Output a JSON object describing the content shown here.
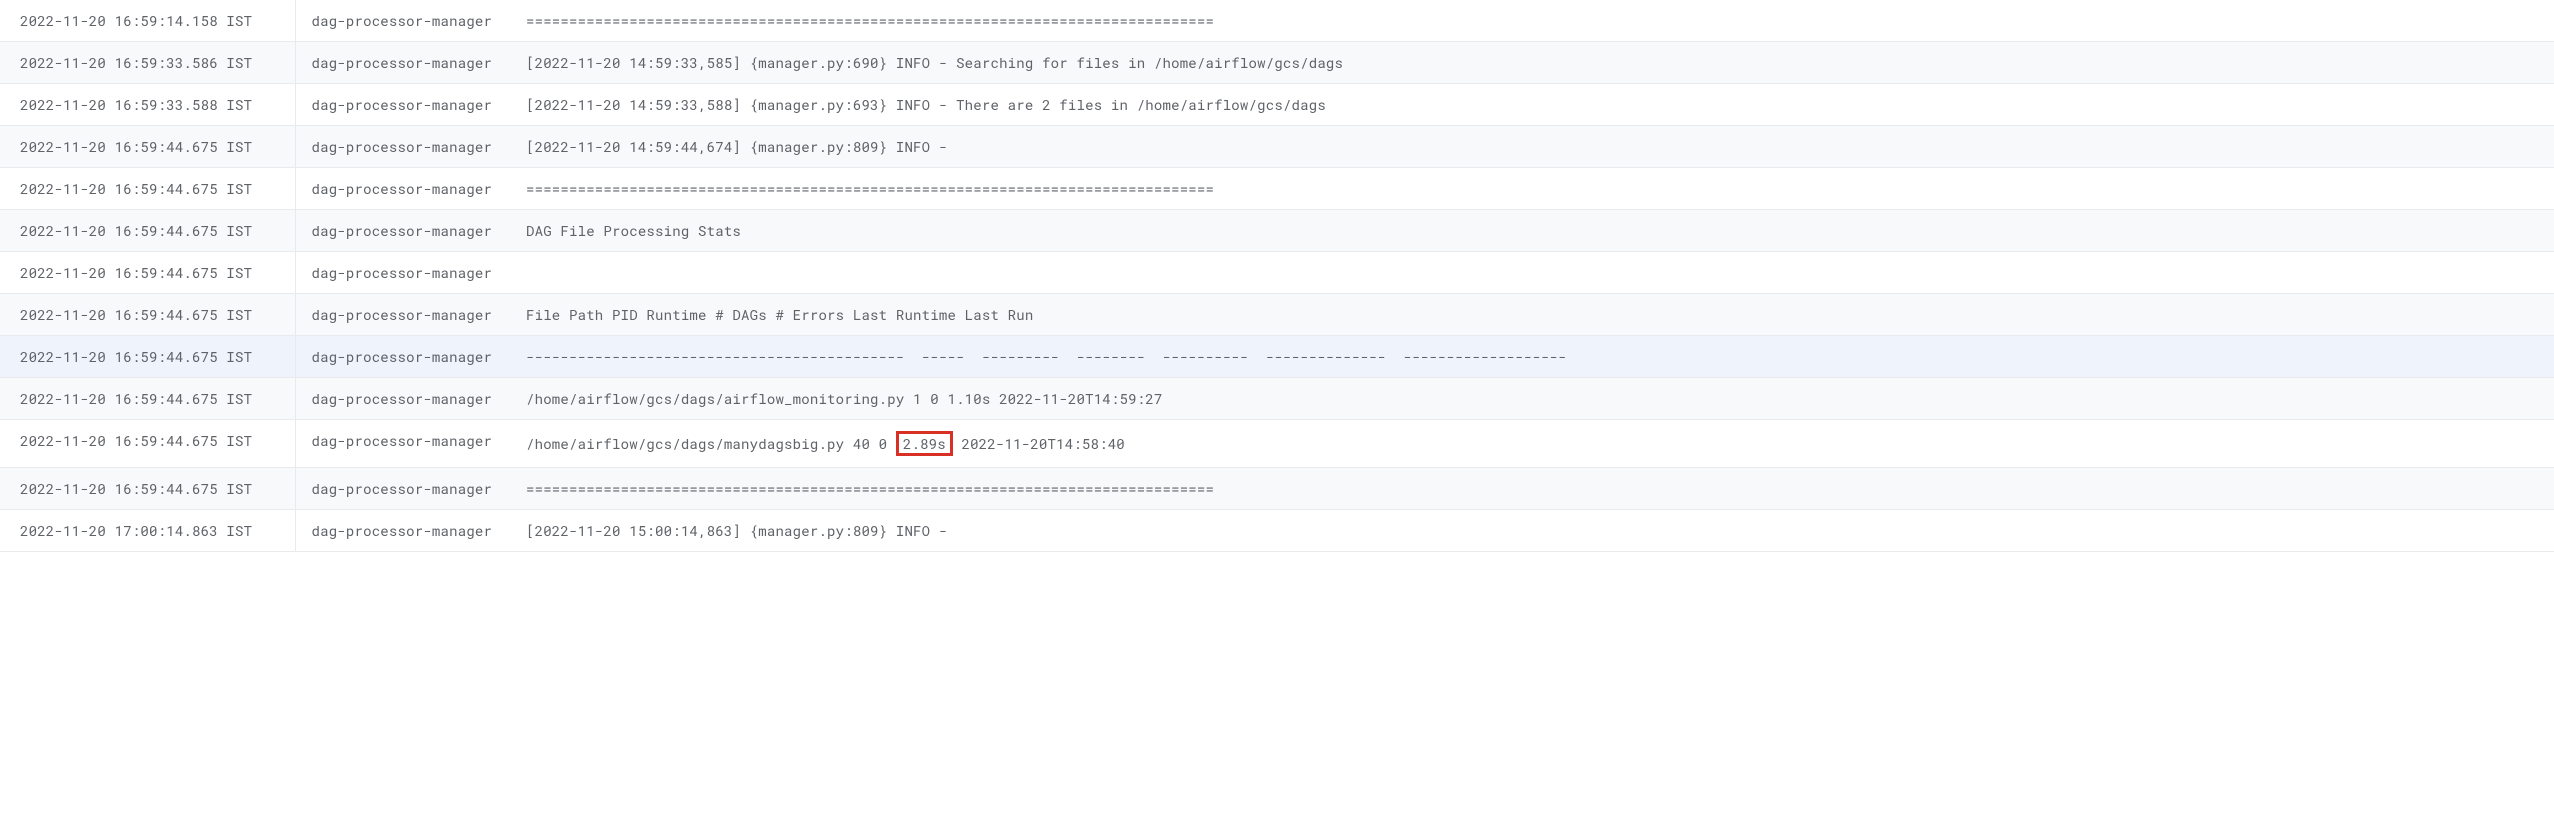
{
  "colors": {
    "text": "#5f6368",
    "border": "#e8eaed",
    "rowAlt": "#f8f9fa",
    "rowHover": "#eef3fc",
    "highlight": "#d93025"
  },
  "columns": {
    "timestampWidth": 295,
    "sourceWidth": 215
  },
  "rows": [
    {
      "timestamp": "2022-11-20 16:59:14.158 IST",
      "source": "dag-processor-manager",
      "message": "================================================================================"
    },
    {
      "timestamp": "2022-11-20 16:59:33.586 IST",
      "source": "dag-processor-manager",
      "message": "[2022-11-20 14:59:33,585] {manager.py:690} INFO - Searching for files in /home/airflow/gcs/dags"
    },
    {
      "timestamp": "2022-11-20 16:59:33.588 IST",
      "source": "dag-processor-manager",
      "message": "[2022-11-20 14:59:33,588] {manager.py:693} INFO - There are 2 files in /home/airflow/gcs/dags"
    },
    {
      "timestamp": "2022-11-20 16:59:44.675 IST",
      "source": "dag-processor-manager",
      "message": "[2022-11-20 14:59:44,674] {manager.py:809} INFO - "
    },
    {
      "timestamp": "2022-11-20 16:59:44.675 IST",
      "source": "dag-processor-manager",
      "message": "================================================================================"
    },
    {
      "timestamp": "2022-11-20 16:59:44.675 IST",
      "source": "dag-processor-manager",
      "message": "DAG File Processing Stats"
    },
    {
      "timestamp": "2022-11-20 16:59:44.675 IST",
      "source": "dag-processor-manager",
      "message": ""
    },
    {
      "timestamp": "2022-11-20 16:59:44.675 IST",
      "source": "dag-processor-manager",
      "message": "File Path PID Runtime # DAGs # Errors Last Runtime Last Run"
    },
    {
      "timestamp": "2022-11-20 16:59:44.675 IST",
      "source": "dag-processor-manager",
      "message": "--------------------------------------------  -----  ---------  --------  ----------  --------------  -------------------",
      "hover": true
    },
    {
      "timestamp": "2022-11-20 16:59:44.675 IST",
      "source": "dag-processor-manager",
      "message": "/home/airflow/gcs/dags/airflow_monitoring.py 1 0 1.10s 2022-11-20T14:59:27"
    },
    {
      "timestamp": "2022-11-20 16:59:44.675 IST",
      "source": "dag-processor-manager",
      "messagePre": "/home/airflow/gcs/dags/manydagsbig.py 40 0 ",
      "highlight": "2.89s",
      "messagePost": " 2022-11-20T14:58:40"
    },
    {
      "timestamp": "2022-11-20 16:59:44.675 IST",
      "source": "dag-processor-manager",
      "message": "================================================================================"
    },
    {
      "timestamp": "2022-11-20 17:00:14.863 IST",
      "source": "dag-processor-manager",
      "message": "[2022-11-20 15:00:14,863] {manager.py:809} INFO - "
    }
  ]
}
